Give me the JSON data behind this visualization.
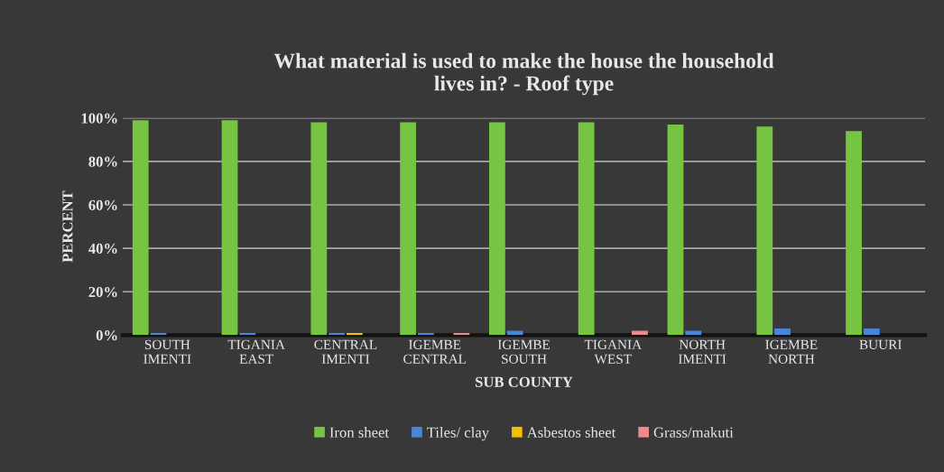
{
  "chart_data": {
    "type": "bar",
    "title": "What material is used to make the house the household\nlives in? - Roof type",
    "xlabel": "SUB COUNTY",
    "ylabel": "PERCENT",
    "categories": [
      "SOUTH\nIMENTI",
      "TIGANIA\nEAST",
      "CENTRAL\nIMENTI",
      "IGEMBE\nCENTRAL",
      "IGEMBE\nSOUTH",
      "TIGANIA\nWEST",
      "NORTH\nIMENTI",
      "IGEMBE\nNORTH",
      "BUURI"
    ],
    "series": [
      {
        "name": "Iron sheet",
        "color": "#76c442",
        "values": [
          99,
          99,
          98,
          98,
          98,
          98,
          97,
          96,
          94
        ]
      },
      {
        "name": "Tiles/ clay",
        "color": "#4a86d8",
        "values": [
          1,
          1,
          1,
          1,
          2,
          0,
          2,
          3,
          3
        ]
      },
      {
        "name": "Asbestos sheet",
        "color": "#f2c200",
        "values": [
          0,
          0,
          1,
          0,
          0,
          0,
          0,
          0,
          0
        ]
      },
      {
        "name": "Grass/makuti",
        "color": "#f08a8a",
        "values": [
          0,
          0,
          0,
          1,
          0,
          2,
          0,
          0,
          0
        ]
      }
    ],
    "ylim": [
      0,
      100
    ],
    "yticks": [
      {
        "value": 0,
        "label": "0%"
      },
      {
        "value": 20,
        "label": "20%"
      },
      {
        "value": 40,
        "label": "40%"
      },
      {
        "value": 60,
        "label": "60%"
      },
      {
        "value": 80,
        "label": "80%"
      },
      {
        "value": 100,
        "label": "100%"
      }
    ],
    "grid": "y",
    "legend": "bottom"
  }
}
